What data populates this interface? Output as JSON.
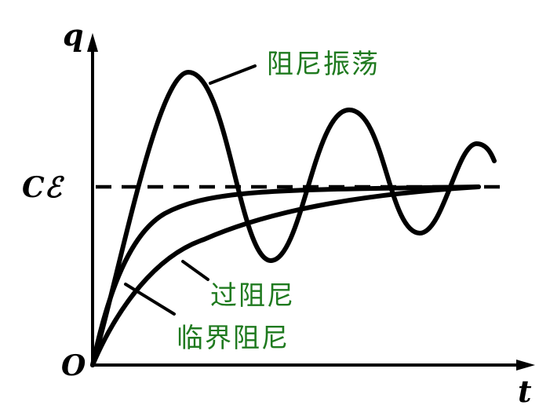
{
  "axes": {
    "vertical_label": "q",
    "horizontal_label": "t",
    "origin_label": "O",
    "level_label": "Cℰ"
  },
  "curves": {
    "underdamped": "阻尼振荡",
    "overdamped": "过阻尼",
    "critically_damped": "临界阻尼"
  },
  "colors": {
    "label_green": "#1f7a1f",
    "line_black": "#000000"
  }
}
